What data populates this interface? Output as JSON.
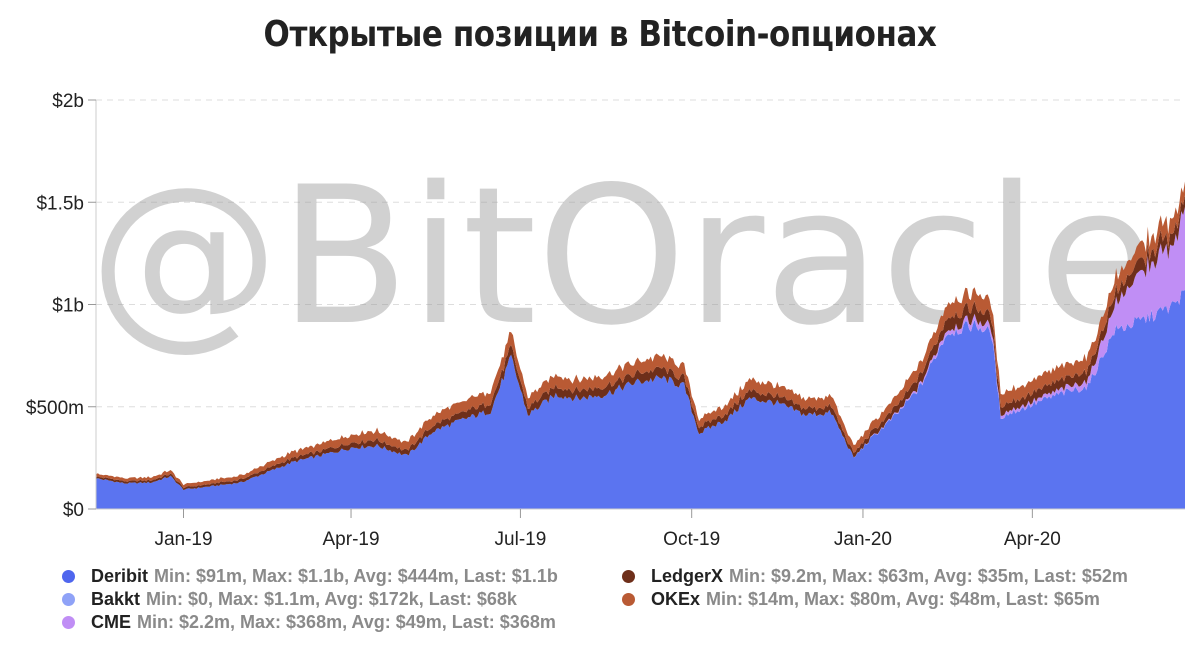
{
  "title": "Открытые позиции в Bitcoin-опционах",
  "watermark": "@BitOracle",
  "chart_data": {
    "type": "area",
    "stacked": true,
    "x_start": "2018-11-15",
    "x_end": "2020-06-22",
    "x_tick_labels": [
      "Jan-19",
      "Apr-19",
      "Jul-19",
      "Oct-19",
      "Jan-20",
      "Apr-20"
    ],
    "x_tick_dates": [
      "2019-01-01",
      "2019-04-01",
      "2019-07-01",
      "2019-10-01",
      "2020-01-01",
      "2020-04-01"
    ],
    "y_tick_labels": [
      "$0",
      "$500m",
      "$1b",
      "$1.5b",
      "$2b"
    ],
    "y_tick_values": [
      0,
      500,
      1000,
      1500,
      2000
    ],
    "ylim": [
      0,
      2000
    ],
    "y_unit": "USD millions",
    "grid": true,
    "legend_position": "bottom",
    "dates": [
      "2018-11-15",
      "2018-12-01",
      "2018-12-15",
      "2018-12-25",
      "2019-01-01",
      "2019-01-15",
      "2019-02-01",
      "2019-02-15",
      "2019-03-01",
      "2019-03-15",
      "2019-04-01",
      "2019-04-15",
      "2019-05-01",
      "2019-05-15",
      "2019-06-01",
      "2019-06-15",
      "2019-06-26",
      "2019-07-05",
      "2019-07-20",
      "2019-08-01",
      "2019-08-15",
      "2019-09-01",
      "2019-09-15",
      "2019-09-27",
      "2019-10-05",
      "2019-10-20",
      "2019-11-01",
      "2019-11-15",
      "2019-12-01",
      "2019-12-15",
      "2019-12-27",
      "2020-01-05",
      "2020-01-20",
      "2020-02-01",
      "2020-02-15",
      "2020-03-01",
      "2020-03-10",
      "2020-03-15",
      "2020-04-01",
      "2020-04-15",
      "2020-05-01",
      "2020-05-15",
      "2020-06-01",
      "2020-06-15",
      "2020-06-22"
    ],
    "series": [
      {
        "name": "Deribit",
        "color": "#5b74f0",
        "values": [
          150,
          125,
          130,
          160,
          95,
          110,
          130,
          180,
          230,
          260,
          300,
          310,
          260,
          380,
          440,
          480,
          740,
          460,
          560,
          540,
          560,
          620,
          640,
          600,
          370,
          440,
          540,
          520,
          460,
          470,
          250,
          340,
          470,
          600,
          860,
          900,
          860,
          450,
          510,
          560,
          600,
          870,
          930,
          990,
          1060
        ]
      },
      {
        "name": "Bakkt",
        "color": "#8fa2f7",
        "values": [
          0,
          0,
          0,
          0,
          0,
          0,
          0,
          0,
          0,
          0,
          0,
          0,
          0,
          0,
          0,
          0,
          0,
          0,
          0,
          0,
          0,
          0,
          0,
          0.02,
          0.02,
          0.03,
          0.05,
          0.1,
          0.2,
          0.3,
          0.4,
          0.5,
          0.6,
          0.7,
          0.8,
          1.1,
          0.9,
          0.5,
          0.3,
          0.2,
          0.15,
          0.1,
          0.08,
          0.07,
          0.068
        ]
      },
      {
        "name": "CME",
        "color": "#c08ef5",
        "values": [
          0,
          0,
          0,
          0,
          0,
          0,
          0,
          0,
          0,
          0,
          0,
          0,
          0,
          0,
          0,
          0,
          0,
          0,
          0,
          0,
          0,
          0,
          0,
          0,
          0,
          0,
          0,
          0,
          0,
          0,
          0,
          2.2,
          5,
          10,
          20,
          30,
          28,
          15,
          15,
          20,
          30,
          120,
          250,
          300,
          368
        ]
      },
      {
        "name": "LedgerX",
        "color": "#6e2f1a",
        "values": [
          9.2,
          10,
          10,
          12,
          10,
          12,
          14,
          18,
          20,
          22,
          25,
          27,
          25,
          30,
          35,
          40,
          50,
          36,
          40,
          38,
          40,
          42,
          45,
          40,
          30,
          32,
          38,
          35,
          30,
          32,
          20,
          25,
          35,
          45,
          55,
          60,
          55,
          40,
          42,
          45,
          48,
          55,
          58,
          60,
          52
        ]
      },
      {
        "name": "OKEx",
        "color": "#b95a34",
        "values": [
          14,
          14,
          15,
          18,
          15,
          18,
          20,
          25,
          30,
          35,
          40,
          45,
          40,
          50,
          55,
          60,
          70,
          50,
          55,
          52,
          55,
          58,
          60,
          55,
          40,
          45,
          55,
          52,
          48,
          50,
          35,
          40,
          50,
          60,
          70,
          75,
          72,
          60,
          62,
          65,
          68,
          72,
          75,
          78,
          65
        ]
      }
    ]
  },
  "legend": [
    {
      "name": "Deribit",
      "color": "#5b74f0",
      "stats": "Min: $91m, Max: $1.1b, Avg: $444m, Last: $1.1b"
    },
    {
      "name": "Bakkt",
      "color": "#8fa2f7",
      "stats": "Min: $0, Max: $1.1m, Avg: $172k, Last: $68k"
    },
    {
      "name": "CME",
      "color": "#c08ef5",
      "stats": "Min: $2.2m, Max: $368m, Avg: $49m, Last: $368m"
    },
    {
      "name": "LedgerX",
      "color": "#6e2f1a",
      "stats": "Min: $9.2m, Max: $63m, Avg: $35m, Last: $52m"
    },
    {
      "name": "OKEx",
      "color": "#b95a34",
      "stats": "Min: $14m, Max: $80m, Avg: $48m, Last: $65m"
    }
  ]
}
